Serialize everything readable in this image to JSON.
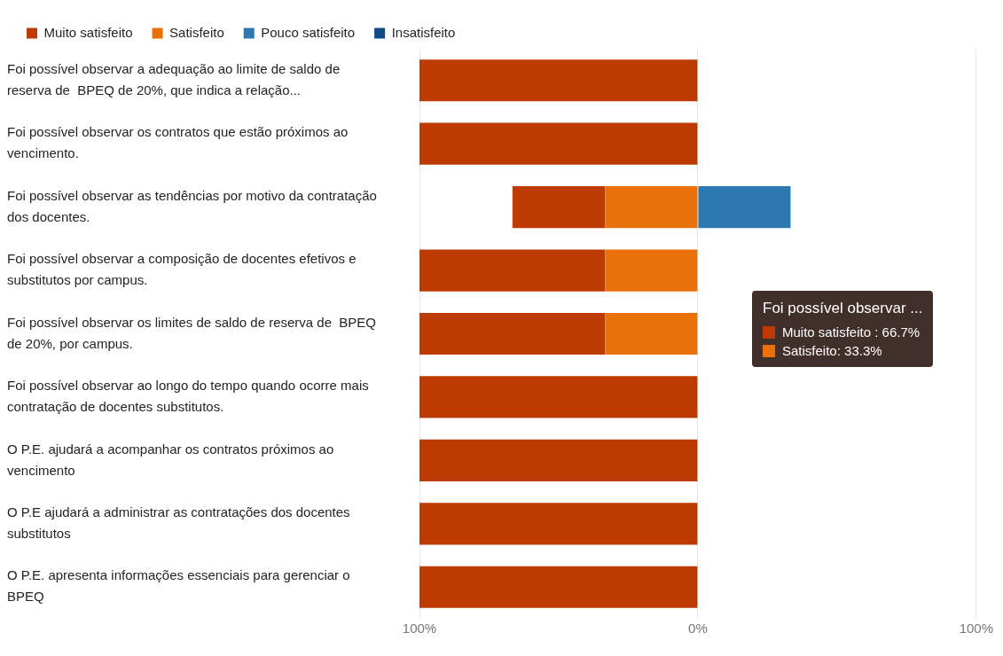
{
  "chart_data": {
    "type": "bar",
    "orientation": "horizontal",
    "stacked": true,
    "categories": [
      "Foi possível observar a adequação ao limite de saldo de reserva de  BPEQ de 20%, que indica a relação...",
      "Foi possível observar os contratos que estão próximos ao vencimento.",
      "Foi possível observar as tendências por motivo da contratação dos docentes.",
      "Foi possível observar a composição de docentes efetivos e substitutos por campus.",
      "Foi possível observar os limites de saldo de reserva de  BPEQ de 20%, por campus.",
      "Foi possível observar ao longo do tempo quando ocorre mais contratação de docentes substitutos.",
      "O P.E. ajudará a acompanhar os contratos próximos ao vencimento",
      "O P.E ajudará a administrar as contratações dos docentes substitutos",
      "O P.E. apresenta informações essenciais para gerenciar o BPEQ"
    ],
    "series": [
      {
        "name": "Muito satisfeito",
        "color": "#bd3b02",
        "values": [
          -100,
          -100,
          -33.3,
          -66.7,
          -66.7,
          -100,
          -100,
          -100,
          -100
        ]
      },
      {
        "name": "Satisfeito",
        "color": "#ea700a",
        "values": [
          0,
          0,
          -33.3,
          -33.3,
          -33.3,
          0,
          0,
          0,
          0
        ]
      },
      {
        "name": "Pouco satisfeito",
        "color": "#2c78b0",
        "values": [
          0,
          0,
          33.3,
          0,
          0,
          0,
          0,
          0,
          0
        ]
      },
      {
        "name": "Insatisfeito",
        "color": "#0d4a86",
        "values": [
          0,
          0,
          0,
          0,
          0,
          0,
          0,
          0,
          0
        ]
      }
    ],
    "xlim": [
      -100,
      100
    ],
    "xticks": [
      {
        "value": -100,
        "label": "100%"
      },
      {
        "value": 0,
        "label": "0%"
      },
      {
        "value": 100,
        "label": "100%"
      }
    ],
    "grid": "x",
    "legend": "top left",
    "annotations": [
      "Foi possível observar ...",
      "Muito satisfeito : 66.7%",
      "Satisfeito: 33.3%"
    ]
  }
}
